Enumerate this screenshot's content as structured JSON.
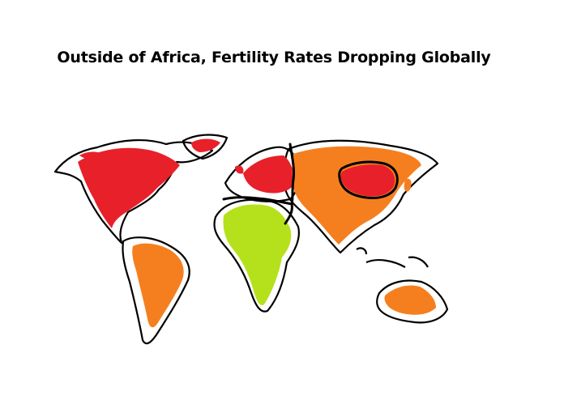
{
  "title": "Outside of Africa, Fertility Rates Dropping Globally",
  "colors": {
    "red": "#e8202a",
    "orange": "#f57f1f",
    "green": "#b5e11c",
    "outline": "#000000",
    "background": "#ffffff"
  },
  "regions": [
    {
      "name": "North America",
      "color": "red"
    },
    {
      "name": "Greenland",
      "color": "red"
    },
    {
      "name": "Europe",
      "color": "red"
    },
    {
      "name": "Russia / Asia",
      "color": "orange"
    },
    {
      "name": "China",
      "color": "red"
    },
    {
      "name": "South America",
      "color": "orange"
    },
    {
      "name": "Africa",
      "color": "green"
    },
    {
      "name": "Australia",
      "color": "orange"
    }
  ]
}
